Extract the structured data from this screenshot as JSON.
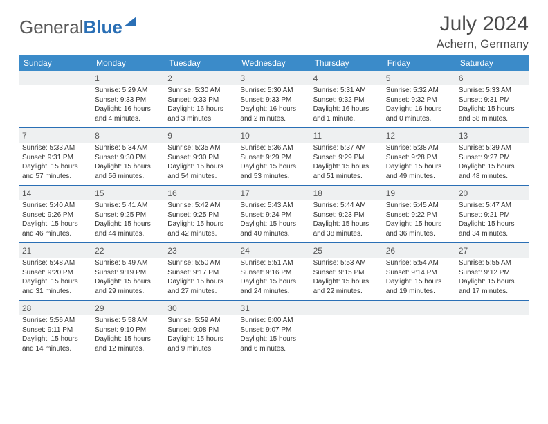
{
  "brand": {
    "part1": "General",
    "part2": "Blue"
  },
  "title": "July 2024",
  "location": "Achern, Germany",
  "colors": {
    "header_bg": "#3b8bc9",
    "daynum_bg": "#eef0f1",
    "rule": "#2a6fb5",
    "text": "#333333",
    "title_text": "#4a4a4a"
  },
  "day_names": [
    "Sunday",
    "Monday",
    "Tuesday",
    "Wednesday",
    "Thursday",
    "Friday",
    "Saturday"
  ],
  "weeks": [
    [
      {
        "day": "",
        "lines": []
      },
      {
        "day": "1",
        "lines": [
          "Sunrise: 5:29 AM",
          "Sunset: 9:33 PM",
          "Daylight: 16 hours",
          "and 4 minutes."
        ]
      },
      {
        "day": "2",
        "lines": [
          "Sunrise: 5:30 AM",
          "Sunset: 9:33 PM",
          "Daylight: 16 hours",
          "and 3 minutes."
        ]
      },
      {
        "day": "3",
        "lines": [
          "Sunrise: 5:30 AM",
          "Sunset: 9:33 PM",
          "Daylight: 16 hours",
          "and 2 minutes."
        ]
      },
      {
        "day": "4",
        "lines": [
          "Sunrise: 5:31 AM",
          "Sunset: 9:32 PM",
          "Daylight: 16 hours",
          "and 1 minute."
        ]
      },
      {
        "day": "5",
        "lines": [
          "Sunrise: 5:32 AM",
          "Sunset: 9:32 PM",
          "Daylight: 16 hours",
          "and 0 minutes."
        ]
      },
      {
        "day": "6",
        "lines": [
          "Sunrise: 5:33 AM",
          "Sunset: 9:31 PM",
          "Daylight: 15 hours",
          "and 58 minutes."
        ]
      }
    ],
    [
      {
        "day": "7",
        "lines": [
          "Sunrise: 5:33 AM",
          "Sunset: 9:31 PM",
          "Daylight: 15 hours",
          "and 57 minutes."
        ]
      },
      {
        "day": "8",
        "lines": [
          "Sunrise: 5:34 AM",
          "Sunset: 9:30 PM",
          "Daylight: 15 hours",
          "and 56 minutes."
        ]
      },
      {
        "day": "9",
        "lines": [
          "Sunrise: 5:35 AM",
          "Sunset: 9:30 PM",
          "Daylight: 15 hours",
          "and 54 minutes."
        ]
      },
      {
        "day": "10",
        "lines": [
          "Sunrise: 5:36 AM",
          "Sunset: 9:29 PM",
          "Daylight: 15 hours",
          "and 53 minutes."
        ]
      },
      {
        "day": "11",
        "lines": [
          "Sunrise: 5:37 AM",
          "Sunset: 9:29 PM",
          "Daylight: 15 hours",
          "and 51 minutes."
        ]
      },
      {
        "day": "12",
        "lines": [
          "Sunrise: 5:38 AM",
          "Sunset: 9:28 PM",
          "Daylight: 15 hours",
          "and 49 minutes."
        ]
      },
      {
        "day": "13",
        "lines": [
          "Sunrise: 5:39 AM",
          "Sunset: 9:27 PM",
          "Daylight: 15 hours",
          "and 48 minutes."
        ]
      }
    ],
    [
      {
        "day": "14",
        "lines": [
          "Sunrise: 5:40 AM",
          "Sunset: 9:26 PM",
          "Daylight: 15 hours",
          "and 46 minutes."
        ]
      },
      {
        "day": "15",
        "lines": [
          "Sunrise: 5:41 AM",
          "Sunset: 9:25 PM",
          "Daylight: 15 hours",
          "and 44 minutes."
        ]
      },
      {
        "day": "16",
        "lines": [
          "Sunrise: 5:42 AM",
          "Sunset: 9:25 PM",
          "Daylight: 15 hours",
          "and 42 minutes."
        ]
      },
      {
        "day": "17",
        "lines": [
          "Sunrise: 5:43 AM",
          "Sunset: 9:24 PM",
          "Daylight: 15 hours",
          "and 40 minutes."
        ]
      },
      {
        "day": "18",
        "lines": [
          "Sunrise: 5:44 AM",
          "Sunset: 9:23 PM",
          "Daylight: 15 hours",
          "and 38 minutes."
        ]
      },
      {
        "day": "19",
        "lines": [
          "Sunrise: 5:45 AM",
          "Sunset: 9:22 PM",
          "Daylight: 15 hours",
          "and 36 minutes."
        ]
      },
      {
        "day": "20",
        "lines": [
          "Sunrise: 5:47 AM",
          "Sunset: 9:21 PM",
          "Daylight: 15 hours",
          "and 34 minutes."
        ]
      }
    ],
    [
      {
        "day": "21",
        "lines": [
          "Sunrise: 5:48 AM",
          "Sunset: 9:20 PM",
          "Daylight: 15 hours",
          "and 31 minutes."
        ]
      },
      {
        "day": "22",
        "lines": [
          "Sunrise: 5:49 AM",
          "Sunset: 9:19 PM",
          "Daylight: 15 hours",
          "and 29 minutes."
        ]
      },
      {
        "day": "23",
        "lines": [
          "Sunrise: 5:50 AM",
          "Sunset: 9:17 PM",
          "Daylight: 15 hours",
          "and 27 minutes."
        ]
      },
      {
        "day": "24",
        "lines": [
          "Sunrise: 5:51 AM",
          "Sunset: 9:16 PM",
          "Daylight: 15 hours",
          "and 24 minutes."
        ]
      },
      {
        "day": "25",
        "lines": [
          "Sunrise: 5:53 AM",
          "Sunset: 9:15 PM",
          "Daylight: 15 hours",
          "and 22 minutes."
        ]
      },
      {
        "day": "26",
        "lines": [
          "Sunrise: 5:54 AM",
          "Sunset: 9:14 PM",
          "Daylight: 15 hours",
          "and 19 minutes."
        ]
      },
      {
        "day": "27",
        "lines": [
          "Sunrise: 5:55 AM",
          "Sunset: 9:12 PM",
          "Daylight: 15 hours",
          "and 17 minutes."
        ]
      }
    ],
    [
      {
        "day": "28",
        "lines": [
          "Sunrise: 5:56 AM",
          "Sunset: 9:11 PM",
          "Daylight: 15 hours",
          "and 14 minutes."
        ]
      },
      {
        "day": "29",
        "lines": [
          "Sunrise: 5:58 AM",
          "Sunset: 9:10 PM",
          "Daylight: 15 hours",
          "and 12 minutes."
        ]
      },
      {
        "day": "30",
        "lines": [
          "Sunrise: 5:59 AM",
          "Sunset: 9:08 PM",
          "Daylight: 15 hours",
          "and 9 minutes."
        ]
      },
      {
        "day": "31",
        "lines": [
          "Sunrise: 6:00 AM",
          "Sunset: 9:07 PM",
          "Daylight: 15 hours",
          "and 6 minutes."
        ]
      },
      {
        "day": "",
        "lines": []
      },
      {
        "day": "",
        "lines": []
      },
      {
        "day": "",
        "lines": []
      }
    ]
  ]
}
